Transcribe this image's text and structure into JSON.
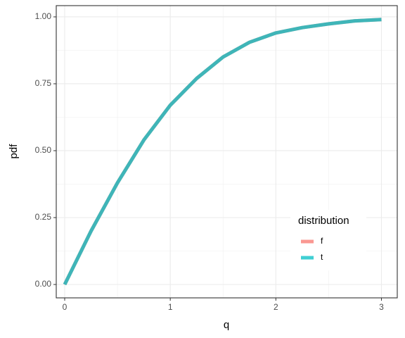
{
  "chart_data": {
    "type": "line",
    "x_label": "q",
    "y_label": "pdf",
    "x": [
      0,
      0.25,
      0.5,
      0.75,
      1,
      1.25,
      1.5,
      1.75,
      2,
      2.25,
      2.5,
      2.75,
      3
    ],
    "series": [
      {
        "name": "f",
        "color": "#F8766D",
        "values": [
          0,
          0.2,
          0.38,
          0.54,
          0.67,
          0.77,
          0.85,
          0.905,
          0.94,
          0.96,
          0.974,
          0.985,
          0.99
        ]
      },
      {
        "name": "t",
        "color": "#00BFC4",
        "values": [
          0,
          0.2,
          0.38,
          0.54,
          0.67,
          0.77,
          0.85,
          0.905,
          0.94,
          0.96,
          0.974,
          0.985,
          0.99
        ]
      }
    ],
    "xlim": [
      -0.08,
      3.15
    ],
    "ylim": [
      -0.05,
      1.042
    ],
    "xticks": [
      0,
      1,
      2,
      3
    ],
    "yticks": [
      {
        "value": 0,
        "label": "0.00"
      },
      {
        "value": 0.25,
        "label": "0.25"
      },
      {
        "value": 0.5,
        "label": "0.50"
      },
      {
        "value": 0.75,
        "label": "0.75"
      },
      {
        "value": 1,
        "label": "1.00"
      }
    ],
    "grid": true,
    "legend_title": "distribution",
    "legend_position": "bottom-right"
  }
}
